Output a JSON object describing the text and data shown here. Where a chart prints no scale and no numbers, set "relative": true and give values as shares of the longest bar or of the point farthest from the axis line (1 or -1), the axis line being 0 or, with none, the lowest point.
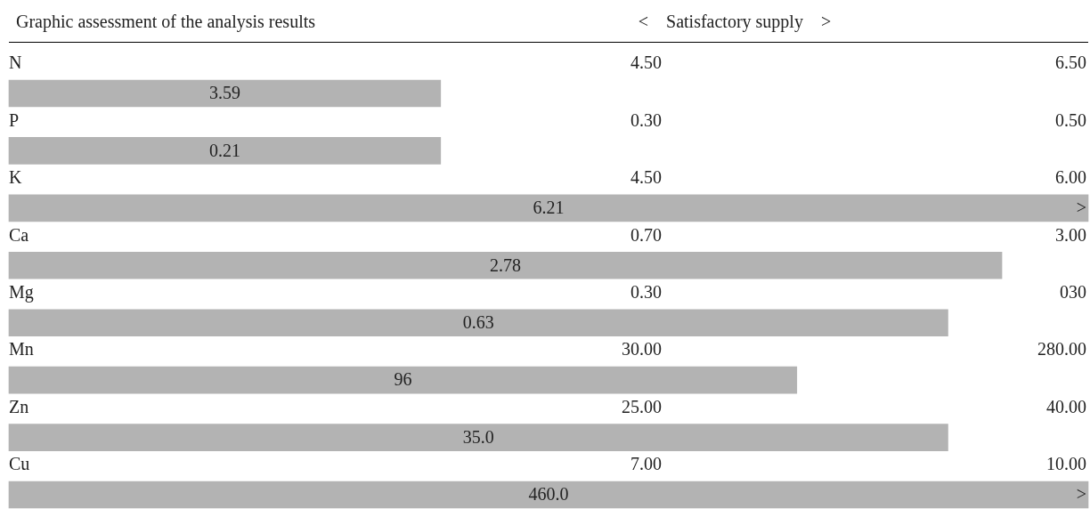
{
  "chart_data": {
    "type": "bar",
    "orientation": "horizontal",
    "relative": true,
    "title": "Graphic assessment of the analysis results",
    "subtitle": "<    Satisfactory supply    >",
    "categories": [
      "N",
      "P",
      "K",
      "Ca",
      "Mg",
      "Mn",
      "Zn",
      "Cu"
    ],
    "values": [
      0.4,
      0.4,
      1,
      0.92,
      0.87,
      0.73,
      0.87,
      1
    ],
    "color": "#b3b3b3",
    "annotations": [
      "4.50",
      "6.50",
      "3.59",
      "0.30",
      "0.50",
      "0.21",
      "4.50",
      "6.00",
      "6.21",
      ">",
      "0.70",
      "3.00",
      "2.78",
      "0.30",
      "030",
      "0.63",
      "30.00",
      "280.00",
      "96",
      "25.00",
      "40.00",
      "35.0",
      "7.00",
      "10.00",
      "460.0",
      ">"
    ]
  }
}
